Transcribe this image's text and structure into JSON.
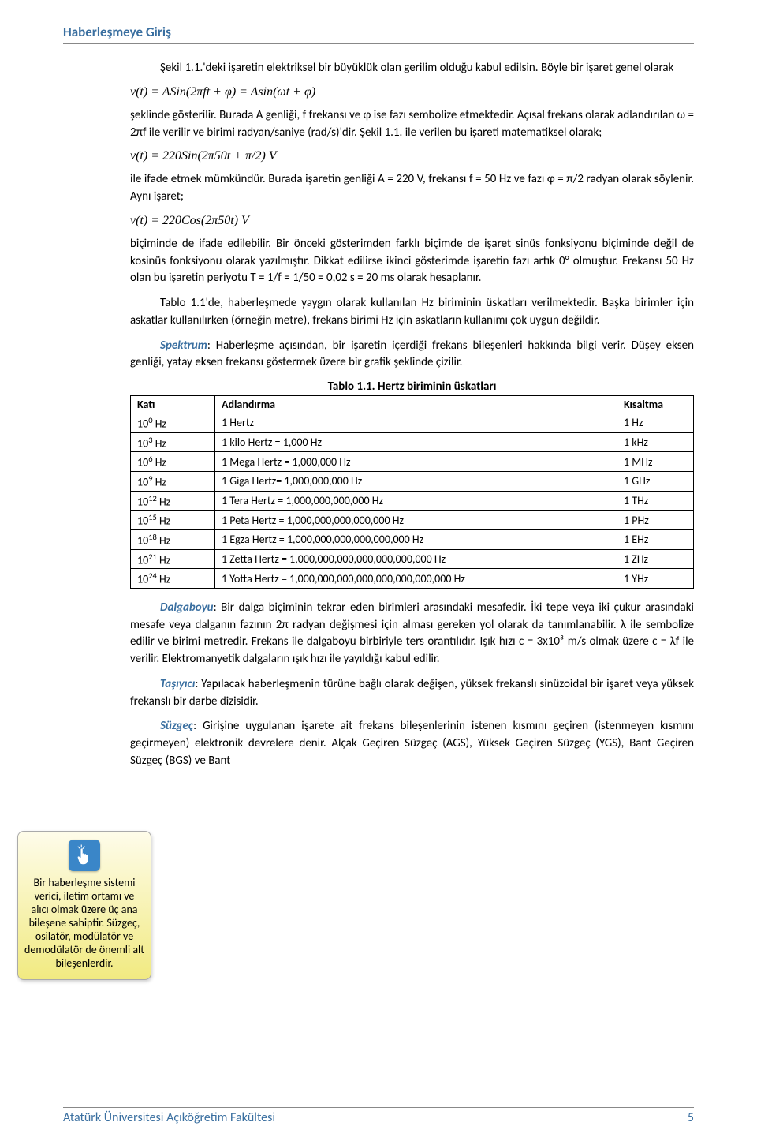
{
  "header": {
    "title": "Haberleşmeye Giriş"
  },
  "content": {
    "para1": "Şekil 1.1.'deki işaretin elektriksel bir büyüklük olan gerilim olduğu kabul edilsin. Böyle bir işaret genel olarak",
    "formula1": "v(t) = ASin(2πft + φ) = Asin(ωt + φ)",
    "para2": "şeklinde gösterilir. Burada A genliği, f frekansı ve φ ise fazı sembolize etmektedir. Açısal frekans olarak adlandırılan ω = 2πf ile verilir ve birimi radyan/saniye (rad/s)'dir. Şekil 1.1. ile verilen bu işareti matematiksel olarak;",
    "formula2": "v(t) = 220Sin(2π50t + π/2) V",
    "para3": "ile ifade etmek mümkündür. Burada işaretin genliği A = 220 V, frekansı f = 50 Hz ve fazı φ = π/2 radyan olarak söylenir. Aynı işaret;",
    "formula3": "v(t) = 220Cos(2π50t) V",
    "para4": "biçiminde de ifade edilebilir. Bir önceki gösterimden farklı biçimde de işaret sinüs fonksiyonu biçiminde değil de kosinüs fonksiyonu olarak yazılmıştır. Dikkat edilirse ikinci gösterimde işaretin fazı artık 0° olmuştur. Frekansı 50 Hz olan bu işaretin periyotu T = 1/f = 1/50 = 0,02 s = 20 ms olarak hesaplanır.",
    "para5": "Tablo 1.1'de, haberleşmede yaygın olarak kullanılan Hz biriminin üskatları verilmektedir. Başka birimler için askatlar kullanılırken (örneğin metre), frekans birimi Hz için askatların kullanımı çok uygun değildir.",
    "para6_prefix": "Spektrum",
    "para6": ": Haberleşme açısından, bir işaretin içerdiği frekans bileşenleri hakkında bilgi verir. Düşey eksen genliği, yatay eksen frekansı göstermek üzere bir grafik şeklinde çizilir.",
    "table_caption": "Tablo 1.1. Hertz biriminin üskatları",
    "para7_prefix": "Dalgaboyu",
    "para7": ": Bir dalga biçiminin tekrar eden birimleri arasındaki mesafedir. İki tepe veya iki çukur arasındaki mesafe veya dalganın fazının 2π radyan değişmesi için alması gereken yol olarak da tanımlanabilir. λ ile sembolize edilir ve birimi metredir. Frekans ile dalgaboyu birbiriyle ters orantılıdır. Işık hızı c = 3x10⁸ m/s olmak üzere c = λf ile verilir. Elektromanyetik dalgaların ışık hızı ile yayıldığı kabul edilir.",
    "para8_prefix": "Taşıyıcı",
    "para8": ": Yapılacak haberleşmenin türüne bağlı olarak değişen, yüksek frekanslı sinüzoidal bir işaret veya yüksek frekanslı bir darbe dizisidir.",
    "para9_prefix": "Süzgeç",
    "para9": ": Girişine uygulanan işarete ait frekans bileşenlerinin istenen kısmını geçiren (istenmeyen kısmını geçirmeyen) elektronik devrelere denir. Alçak Geçiren Süzgeç (AGS), Yüksek Geçiren Süzgeç (YGS), Bant Geçiren Süzgeç (BGS) ve Bant"
  },
  "table": {
    "headers": [
      "Katı",
      "Adlandırma",
      "Kısaltma"
    ],
    "rows": [
      {
        "exp": "0",
        "name": "1 Hertz",
        "abbr": "1 Hz"
      },
      {
        "exp": "3",
        "name": "1 kilo Hertz = 1,000 Hz",
        "abbr": "1 kHz"
      },
      {
        "exp": "6",
        "name": "1 Mega Hertz = 1,000,000 Hz",
        "abbr": "1 MHz"
      },
      {
        "exp": "9",
        "name": "1 Giga Hertz= 1,000,000,000 Hz",
        "abbr": "1 GHz"
      },
      {
        "exp": "12",
        "name": "1 Tera Hertz = 1,000,000,000,000 Hz",
        "abbr": "1 THz"
      },
      {
        "exp": "15",
        "name": "1 Peta Hertz = 1,000,000,000,000,000 Hz",
        "abbr": "1 PHz"
      },
      {
        "exp": "18",
        "name": "1 Egza Hertz = 1,000,000,000,000,000,000 Hz",
        "abbr": "1 EHz"
      },
      {
        "exp": "21",
        "name": "1 Zetta Hertz = 1,000,000,000,000,000,000,000 Hz",
        "abbr": "1 ZHz"
      },
      {
        "exp": "24",
        "name": "1 Yotta Hertz = 1,000,000,000,000,000,000,000,000 Hz",
        "abbr": "1 YHz"
      }
    ]
  },
  "callout": {
    "text": "Bir haberleşme sistemi verici, iletim ortamı ve alıcı olmak üzere üç ana bileşene sahiptir. Süzgeç, osilatör, modülatör ve demodülatör de önemli alt bileşenlerdir."
  },
  "footer": {
    "org": "Atatürk Üniversitesi Açıköğretim Fakültesi",
    "page": "5"
  },
  "style": {
    "primary_color": "#3a6fa0",
    "callout_bg_top": "#fefcea",
    "callout_bg_bottom": "#f1ea81",
    "icon_bg": "#3a86c8",
    "font_body_size": 15,
    "font_formula_family": "Cambria Math"
  }
}
